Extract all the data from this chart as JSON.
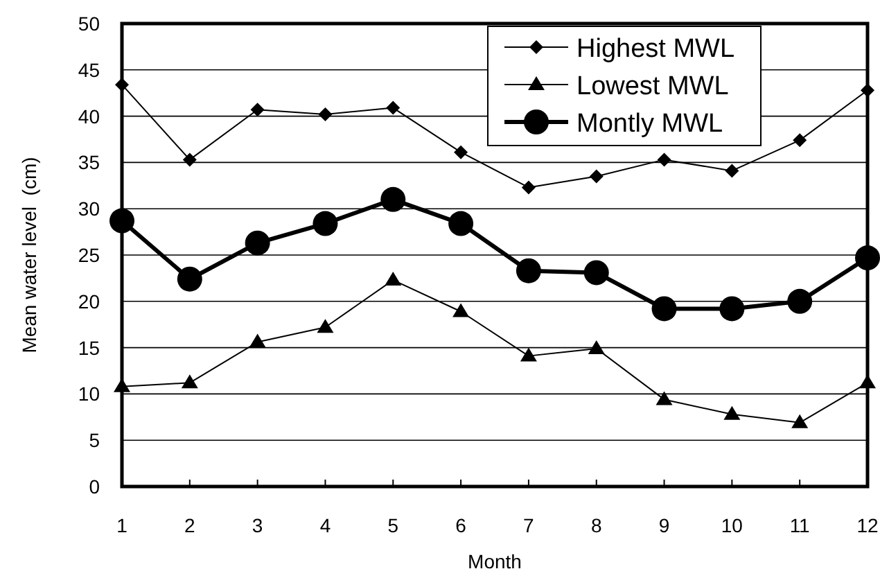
{
  "chart_data": {
    "type": "line",
    "xlabel": "Month",
    "ylabel": "Mean water level  (cm)",
    "x": [
      1,
      2,
      3,
      4,
      5,
      6,
      7,
      8,
      9,
      10,
      11,
      12
    ],
    "xlim": [
      1,
      12
    ],
    "xticks": [
      1,
      2,
      3,
      4,
      5,
      6,
      7,
      8,
      9,
      10,
      11,
      12
    ],
    "ylim": [
      0,
      50
    ],
    "yticks": [
      0,
      5,
      10,
      15,
      20,
      25,
      30,
      35,
      40,
      45,
      50
    ],
    "grid": "y",
    "legend": "top right",
    "series": [
      {
        "name": "Highest MWL",
        "color": "#000000",
        "marker": "diamond",
        "values": [
          43.4,
          35.3,
          40.7,
          40.2,
          40.9,
          36.1,
          32.3,
          33.5,
          35.3,
          34.1,
          37.4,
          42.8
        ]
      },
      {
        "name": "Lowest MWL",
        "color": "#000000",
        "marker": "triangle",
        "values": [
          10.8,
          11.2,
          15.6,
          17.2,
          22.3,
          18.9,
          14.1,
          14.9,
          9.4,
          7.8,
          6.9,
          11.2
        ]
      },
      {
        "name": "Montly MWL",
        "color": "#000000",
        "marker": "circle",
        "values": [
          28.7,
          22.4,
          26.3,
          28.4,
          31.0,
          28.4,
          23.3,
          23.1,
          19.2,
          19.2,
          20.0,
          24.7
        ]
      }
    ]
  }
}
